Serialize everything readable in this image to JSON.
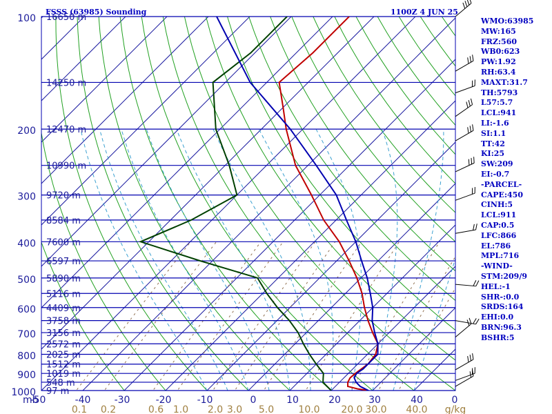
{
  "header": {
    "station": "FSSS (63985) Sounding",
    "time": "1100Z  4 JUN 25"
  },
  "indices": [
    "WMO:63985",
    "MW:165",
    "FRZ:560",
    "WB0:623",
    "PW:1.92",
    "RH:63.4",
    "MAXT:31.7",
    "TH:5793",
    "L57:5.7",
    "LCL:941",
    "LI:-1.6",
    "SI:1.1",
    "TT:42",
    "KI:25",
    "SW:209",
    "EI:-0.7",
    "-PARCEL-",
    "CAPE:450",
    "CINH:5",
    "LCL:911",
    "CAP:0.5",
    "LFC:866",
    "EL:786",
    "MPL:716",
    "-WIND-",
    "STM:209/9",
    "HEL:-1",
    "SHR-:0.0",
    "SRDS:164",
    "EHI:0.0",
    "BRN:96.3",
    "BSHR:5"
  ],
  "chart_data": {
    "type": "line",
    "title": "FSSS (63985) Sounding",
    "subtitle": "1100Z  4 JUN 25",
    "xlabel": "",
    "ylabel": "mb",
    "y_scale": "log pressure (skew-T log-P)",
    "ylim": [
      1000,
      100
    ],
    "xlim": [
      -50,
      0
    ],
    "x_ticks": [
      "-50",
      "-40",
      "-30",
      "-20",
      "-10",
      "0",
      "10",
      "20",
      "30",
      "40",
      "0"
    ],
    "y_ticks": [
      "100",
      "200",
      "300",
      "400",
      "500",
      "600",
      "700",
      "800",
      "900",
      "1000"
    ],
    "mixing_ratio_labels": [
      "0.1",
      "0.2",
      "0.6",
      "1.0",
      "2.0",
      "3.0",
      "5.0",
      "10.0",
      "20.0",
      "30.0",
      "40.0",
      "g/kg"
    ],
    "mixing_ratio_values": [
      0.1,
      0.2,
      0.6,
      1.0,
      2.0,
      3.0,
      5.0,
      10.0,
      20.0,
      30.0,
      40.0
    ],
    "height_labels": [
      {
        "p": 100,
        "text": "16650 m"
      },
      {
        "p": 150,
        "text": "14250 m"
      },
      {
        "p": 200,
        "text": "12470 m"
      },
      {
        "p": 250,
        "text": "10990 m"
      },
      {
        "p": 300,
        "text": "9720 m"
      },
      {
        "p": 350,
        "text": "8584 m"
      },
      {
        "p": 400,
        "text": "7600 m"
      },
      {
        "p": 450,
        "text": "6597 m"
      },
      {
        "p": 500,
        "text": "5890 m"
      },
      {
        "p": 550,
        "text": "5116 m"
      },
      {
        "p": 600,
        "text": "4409 m"
      },
      {
        "p": 650,
        "text": "3758 m"
      },
      {
        "p": 700,
        "text": "3156 m"
      },
      {
        "p": 750,
        "text": "2572 m"
      },
      {
        "p": 800,
        "text": "2025 m"
      },
      {
        "p": 850,
        "text": "1512 m"
      },
      {
        "p": 900,
        "text": "1019 m"
      },
      {
        "p": 950,
        "text": "548 m"
      },
      {
        "p": 1000,
        "text": "97 m"
      }
    ],
    "series": [
      {
        "key": "temperature",
        "color": "#c00000",
        "points": [
          [
            1000,
            29
          ],
          [
            990,
            26
          ],
          [
            975,
            23
          ],
          [
            950,
            22
          ],
          [
            925,
            21.5
          ],
          [
            900,
            21.7
          ],
          [
            850,
            22.5
          ],
          [
            800,
            22
          ],
          [
            750,
            20
          ],
          [
            700,
            16
          ],
          [
            650,
            12
          ],
          [
            600,
            8
          ],
          [
            550,
            4
          ],
          [
            500,
            -1
          ],
          [
            450,
            -7
          ],
          [
            400,
            -14
          ],
          [
            350,
            -23
          ],
          [
            300,
            -32
          ],
          [
            250,
            -43
          ],
          [
            200,
            -54
          ],
          [
            175,
            -60
          ],
          [
            150,
            -67
          ],
          [
            125,
            -66
          ],
          [
            100,
            -66
          ]
        ]
      },
      {
        "key": "dewpoint",
        "color": "#004000",
        "points": [
          [
            1000,
            20
          ],
          [
            975,
            18
          ],
          [
            950,
            16
          ],
          [
            925,
            15
          ],
          [
            900,
            14
          ],
          [
            850,
            10
          ],
          [
            800,
            6
          ],
          [
            750,
            2
          ],
          [
            700,
            -2
          ],
          [
            650,
            -7
          ],
          [
            600,
            -13
          ],
          [
            550,
            -19
          ],
          [
            500,
            -25
          ],
          [
            450,
            -43
          ],
          [
            400,
            -62
          ],
          [
            350,
            -55
          ],
          [
            300,
            -50
          ],
          [
            250,
            -59
          ],
          [
            200,
            -71
          ],
          [
            150,
            -83
          ],
          [
            125,
            -81
          ],
          [
            100,
            -81
          ]
        ]
      },
      {
        "key": "parcel",
        "color": "#0000b0",
        "points": [
          [
            1000,
            29
          ],
          [
            975,
            26
          ],
          [
            950,
            24
          ],
          [
            925,
            22.5
          ],
          [
            900,
            22
          ],
          [
            875,
            22.5
          ],
          [
            850,
            22.5
          ],
          [
            800,
            22.5
          ],
          [
            750,
            20
          ],
          [
            700,
            16.5
          ],
          [
            650,
            13
          ],
          [
            600,
            10
          ],
          [
            550,
            6
          ],
          [
            500,
            1.5
          ],
          [
            450,
            -4
          ],
          [
            400,
            -10
          ],
          [
            350,
            -17.5
          ],
          [
            300,
            -26
          ],
          [
            250,
            -38
          ],
          [
            200,
            -53
          ],
          [
            150,
            -74
          ],
          [
            100,
            -98
          ]
        ]
      }
    ]
  }
}
